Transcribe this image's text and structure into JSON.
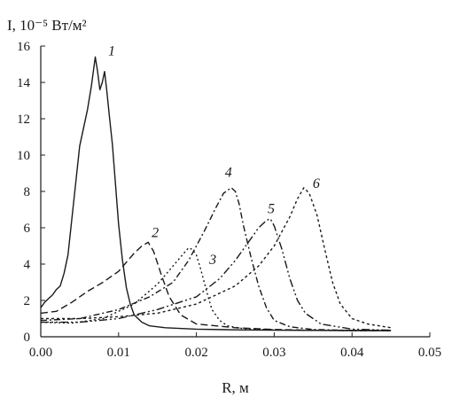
{
  "chart_data": {
    "type": "line",
    "ylabel": "I, 10⁻⁵ Вт/м²",
    "xlabel": "R, м",
    "xlim": [
      0,
      0.05
    ],
    "ylim": [
      0,
      16
    ],
    "xticks": [
      "0.00",
      "0.01",
      "0.02",
      "0.03",
      "0.04",
      "0.05"
    ],
    "yticks": [
      "0",
      "2",
      "4",
      "6",
      "8",
      "10",
      "12",
      "14",
      "16"
    ],
    "grid": false,
    "series": [
      {
        "name": "1",
        "dash": "solid",
        "label_at": [
          0.0082,
          15.4
        ],
        "x": [
          0.0,
          0.0005,
          0.001,
          0.0015,
          0.002,
          0.0025,
          0.003,
          0.0035,
          0.004,
          0.0045,
          0.005,
          0.0055,
          0.006,
          0.0065,
          0.007,
          0.0073,
          0.0076,
          0.0079,
          0.0082,
          0.0085,
          0.0088,
          0.0092,
          0.0096,
          0.01,
          0.0105,
          0.011,
          0.0115,
          0.012,
          0.013,
          0.014,
          0.016,
          0.02,
          0.025,
          0.03,
          0.035,
          0.04,
          0.045
        ],
        "y": [
          1.6,
          1.9,
          2.1,
          2.3,
          2.6,
          2.8,
          3.5,
          4.5,
          6.5,
          8.5,
          10.5,
          11.5,
          12.5,
          13.8,
          15.4,
          14.6,
          13.6,
          14.0,
          14.6,
          13.5,
          12.2,
          10.6,
          8.4,
          6.2,
          4.2,
          2.7,
          1.8,
          1.2,
          0.8,
          0.6,
          0.5,
          0.42,
          0.38,
          0.36,
          0.35,
          0.34,
          0.34
        ]
      },
      {
        "name": "2",
        "dash": "8,4",
        "label_at": [
          0.0138,
          5.4
        ],
        "x": [
          0.0,
          0.002,
          0.004,
          0.006,
          0.008,
          0.01,
          0.011,
          0.012,
          0.013,
          0.0138,
          0.0145,
          0.0155,
          0.0165,
          0.018,
          0.02,
          0.025,
          0.03,
          0.035,
          0.04,
          0.045
        ],
        "y": [
          1.3,
          1.4,
          1.9,
          2.5,
          3.0,
          3.6,
          4.1,
          4.6,
          5.0,
          5.2,
          4.7,
          3.4,
          2.2,
          1.2,
          0.7,
          0.5,
          0.4,
          0.36,
          0.34,
          0.34
        ]
      },
      {
        "name": "3",
        "dash": "2,3",
        "label_at": [
          0.0212,
          3.9
        ],
        "x": [
          0.0,
          0.004,
          0.008,
          0.012,
          0.015,
          0.017,
          0.018,
          0.019,
          0.0195,
          0.02,
          0.0205,
          0.021,
          0.0215,
          0.022,
          0.023,
          0.024,
          0.026,
          0.03,
          0.035,
          0.04,
          0.045
        ],
        "y": [
          0.8,
          0.75,
          1.0,
          1.8,
          2.9,
          3.9,
          4.4,
          4.9,
          4.8,
          4.5,
          3.8,
          3.0,
          2.2,
          1.5,
          0.9,
          0.6,
          0.45,
          0.38,
          0.35,
          0.34,
          0.34
        ]
      },
      {
        "name": "4",
        "dash": "7,3,2,3",
        "label_at": [
          0.0232,
          8.7
        ],
        "x": [
          0.0,
          0.005,
          0.01,
          0.014,
          0.017,
          0.019,
          0.021,
          0.0225,
          0.0235,
          0.0245,
          0.025,
          0.0255,
          0.026,
          0.027,
          0.028,
          0.029,
          0.03,
          0.032,
          0.035,
          0.04,
          0.045
        ],
        "y": [
          0.9,
          1.0,
          1.5,
          2.2,
          3.0,
          4.2,
          5.8,
          7.1,
          7.9,
          8.2,
          8.0,
          7.3,
          6.2,
          4.4,
          2.8,
          1.6,
          0.9,
          0.55,
          0.4,
          0.35,
          0.34
        ]
      },
      {
        "name": "5",
        "dash": "9,3,2,3,2,3",
        "label_at": [
          0.0287,
          6.7
        ],
        "x": [
          0.0,
          0.005,
          0.01,
          0.015,
          0.02,
          0.023,
          0.025,
          0.027,
          0.028,
          0.029,
          0.0295,
          0.03,
          0.031,
          0.032,
          0.033,
          0.034,
          0.036,
          0.04,
          0.045
        ],
        "y": [
          0.8,
          0.8,
          1.0,
          1.5,
          2.2,
          3.2,
          4.2,
          5.4,
          6.0,
          6.4,
          6.5,
          6.1,
          4.8,
          3.2,
          2.0,
          1.3,
          0.7,
          0.42,
          0.36
        ]
      },
      {
        "name": "6",
        "dash": "3,3",
        "label_at": [
          0.0345,
          8.1
        ],
        "x": [
          0.0,
          0.005,
          0.01,
          0.015,
          0.02,
          0.025,
          0.028,
          0.03,
          0.031,
          0.032,
          0.033,
          0.0338,
          0.0345,
          0.0355,
          0.0365,
          0.0375,
          0.0385,
          0.04,
          0.042,
          0.045
        ],
        "y": [
          1.0,
          1.0,
          1.1,
          1.3,
          1.8,
          2.8,
          3.9,
          5.0,
          5.8,
          6.6,
          7.6,
          8.2,
          7.9,
          6.7,
          4.8,
          3.0,
          1.8,
          1.0,
          0.7,
          0.5
        ]
      }
    ]
  }
}
